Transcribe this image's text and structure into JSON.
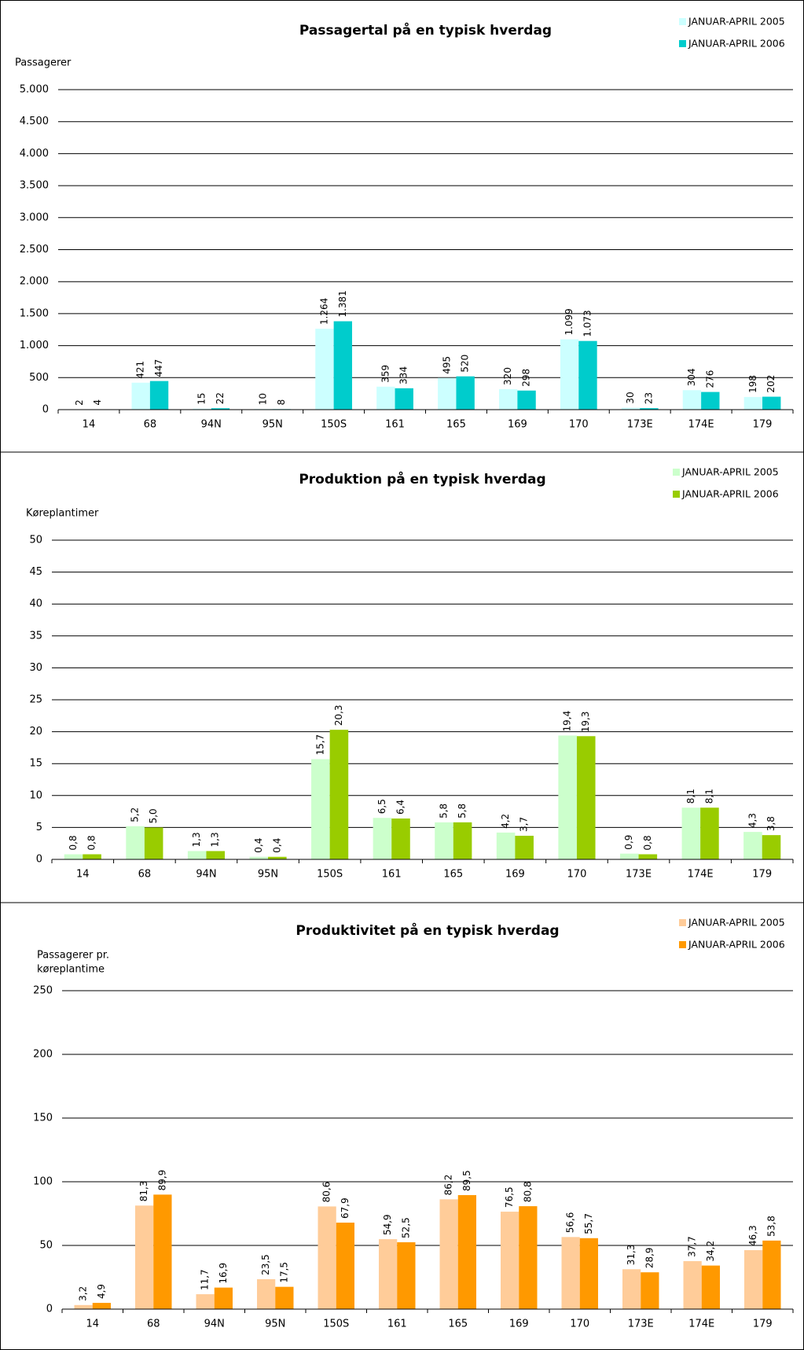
{
  "chart_data": [
    {
      "type": "bar",
      "title": "Passagertal på en typisk hverdag",
      "ylabel": "Passagerer",
      "categories": [
        "14",
        "68",
        "94N",
        "95N",
        "150S",
        "161",
        "165",
        "169",
        "170",
        "173E",
        "174E",
        "179"
      ],
      "series": [
        {
          "name": "JANUAR-APRIL 2005",
          "color": "#ccffff",
          "values": [
            2,
            421,
            15,
            10,
            1264,
            359,
            495,
            320,
            1099,
            30,
            304,
            198
          ],
          "value_labels": [
            "2",
            "421",
            "15",
            "10",
            "1.264",
            "359",
            "495",
            "320",
            "1.099",
            "30",
            "304",
            "198"
          ]
        },
        {
          "name": "JANUAR-APRIL 2006",
          "color": "#00cccc",
          "values": [
            4,
            447,
            22,
            8,
            1381,
            334,
            520,
            298,
            1073,
            23,
            276,
            202
          ],
          "value_labels": [
            "4",
            "447",
            "22",
            "8",
            "1.381",
            "334",
            "520",
            "298",
            "1.073",
            "23",
            "276",
            "202"
          ]
        }
      ],
      "ylim": [
        0,
        5000
      ],
      "yticks": [
        0,
        500,
        {
          "value": 1000,
          "label": "1.000"
        },
        {
          "value": 1500,
          "label": "1.500"
        },
        {
          "value": 2000,
          "label": "2.000"
        },
        {
          "value": 2500,
          "label": "2.500"
        },
        {
          "value": 3000,
          "label": "3.000"
        },
        {
          "value": 3500,
          "label": "3.500"
        },
        {
          "value": 4000,
          "label": "4.000"
        },
        {
          "value": 4500,
          "label": "4.500"
        },
        {
          "value": 5000,
          "label": "5.000"
        }
      ],
      "grid": true,
      "legend": "top-right"
    },
    {
      "type": "bar",
      "title": "Produktion på en typisk hverdag",
      "ylabel": "Køreplantimer",
      "categories": [
        "14",
        "68",
        "94N",
        "95N",
        "150S",
        "161",
        "165",
        "169",
        "170",
        "173E",
        "174E",
        "179"
      ],
      "series": [
        {
          "name": "JANUAR-APRIL 2005",
          "color": "#ccffcc",
          "values": [
            0.8,
            5.2,
            1.3,
            0.4,
            15.7,
            6.5,
            5.8,
            4.2,
            19.4,
            0.9,
            8.1,
            4.3
          ],
          "value_labels": [
            "0,8",
            "5,2",
            "1,3",
            "0,4",
            "15,7",
            "6,5",
            "5,8",
            "4,2",
            "19,4",
            "0,9",
            "8,1",
            "4,3"
          ]
        },
        {
          "name": "JANUAR-APRIL 2006",
          "color": "#99cc00",
          "values": [
            0.8,
            5.0,
            1.3,
            0.4,
            20.3,
            6.4,
            5.8,
            3.7,
            19.3,
            0.8,
            8.1,
            3.8
          ],
          "value_labels": [
            "0,8",
            "5,0",
            "1,3",
            "0,4",
            "20,3",
            "6,4",
            "5,8",
            "3,7",
            "19,3",
            "0,8",
            "8,1",
            "3,8"
          ]
        }
      ],
      "ylim": [
        0,
        50
      ],
      "yticks": [
        0,
        5,
        10,
        15,
        20,
        25,
        30,
        35,
        40,
        45,
        50
      ],
      "grid": true,
      "legend": "top-right"
    },
    {
      "type": "bar",
      "title": "Produktivitet på en typisk hverdag",
      "ylabel": [
        "Passagerer pr.",
        "køreplantime"
      ],
      "categories": [
        "14",
        "68",
        "94N",
        "95N",
        "150S",
        "161",
        "165",
        "169",
        "170",
        "173E",
        "174E",
        "179"
      ],
      "series": [
        {
          "name": "JANUAR-APRIL 2005",
          "color": "#ffcc99",
          "values": [
            3.2,
            81.3,
            11.7,
            23.5,
            80.6,
            54.9,
            86.2,
            76.5,
            56.6,
            31.3,
            37.7,
            46.3
          ],
          "value_labels": [
            "3,2",
            "81,3",
            "11,7",
            "23,5",
            "80,6",
            "54,9",
            "86,2",
            "76,5",
            "56,6",
            "31,3",
            "37,7",
            "46,3"
          ]
        },
        {
          "name": "JANUAR-APRIL 2006",
          "color": "#ff9900",
          "values": [
            4.9,
            89.9,
            16.9,
            17.5,
            67.9,
            52.5,
            89.5,
            80.8,
            55.7,
            28.9,
            34.2,
            53.8
          ],
          "value_labels": [
            "4,9",
            "89,9",
            "16,9",
            "17,5",
            "67,9",
            "52,5",
            "89,5",
            "80,8",
            "55,7",
            "28,9",
            "34,2",
            "53,8"
          ]
        }
      ],
      "ylim": [
        0,
        250
      ],
      "yticks": [
        0,
        50,
        100,
        150,
        200,
        250
      ],
      "grid": true,
      "legend": "top-right"
    }
  ]
}
